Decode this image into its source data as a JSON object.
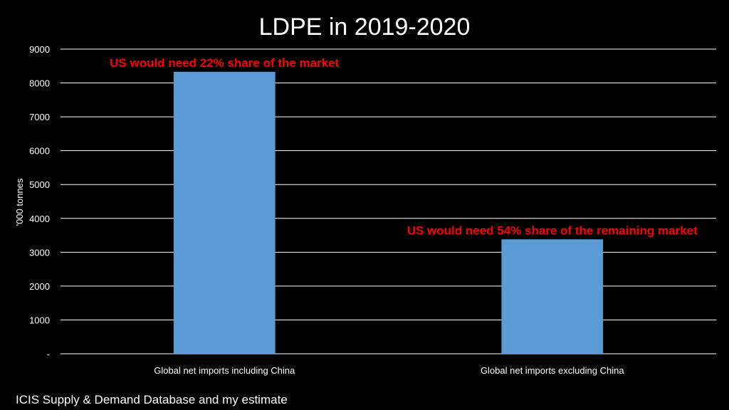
{
  "chart_data": {
    "type": "bar",
    "title": "LDPE in 2019-2020",
    "ylabel": "'000 tonnes",
    "xlabel": "",
    "categories": [
      "Global net imports including China",
      "Global net imports excluding China"
    ],
    "values": [
      8330,
      3380
    ],
    "ylim": [
      0,
      9000
    ],
    "yticks": [
      "-",
      "1000",
      "2000",
      "3000",
      "4000",
      "5000",
      "6000",
      "7000",
      "8000",
      "9000"
    ],
    "grid": true,
    "annotations": [
      "US would need 22% share of the market",
      "US would need 54% share of the remaining market"
    ],
    "source": "ICIS Supply & Demand Database and my estimate",
    "colors": {
      "bar": "#5b9bd5",
      "annotation": "#ff0000",
      "background": "#000000",
      "text": "#ffffff"
    }
  }
}
